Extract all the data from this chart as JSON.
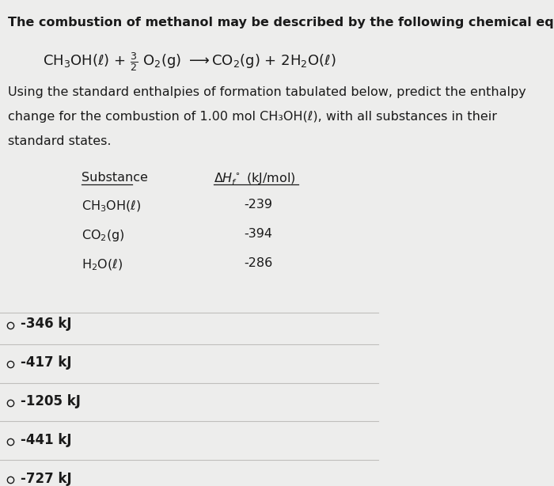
{
  "bg_color": "#ededec",
  "title_line": "The combustion of methanol may be described by the following chemical equation:",
  "body_text_lines": [
    "Using the standard enthalpies of formation tabulated below, predict the enthalpy",
    "change for the combustion of 1.00 mol CH₃OH(ℓ), with all substances in their",
    "standard states."
  ],
  "table_header_substance": "Substance",
  "table_header_enthalpy": "ΔH°f (kJ/mol)",
  "table_rows": [
    [
      "CH₃OH(ℓ)",
      "-239"
    ],
    [
      "CO₂(g)",
      "-394"
    ],
    [
      "H₂O(ℓ)",
      "-286"
    ]
  ],
  "choices": [
    "O  -346 kJ",
    "O  -417 kJ",
    "O  -1205 kJ",
    "O  -441 kJ",
    "O  -727 kJ"
  ],
  "font_size_title": 11.5,
  "font_size_body": 11.5,
  "font_size_equation": 12,
  "font_size_table": 11.5,
  "font_size_choices": 12,
  "text_color": "#1a1a1a",
  "divider_color": "#c0bfbc"
}
